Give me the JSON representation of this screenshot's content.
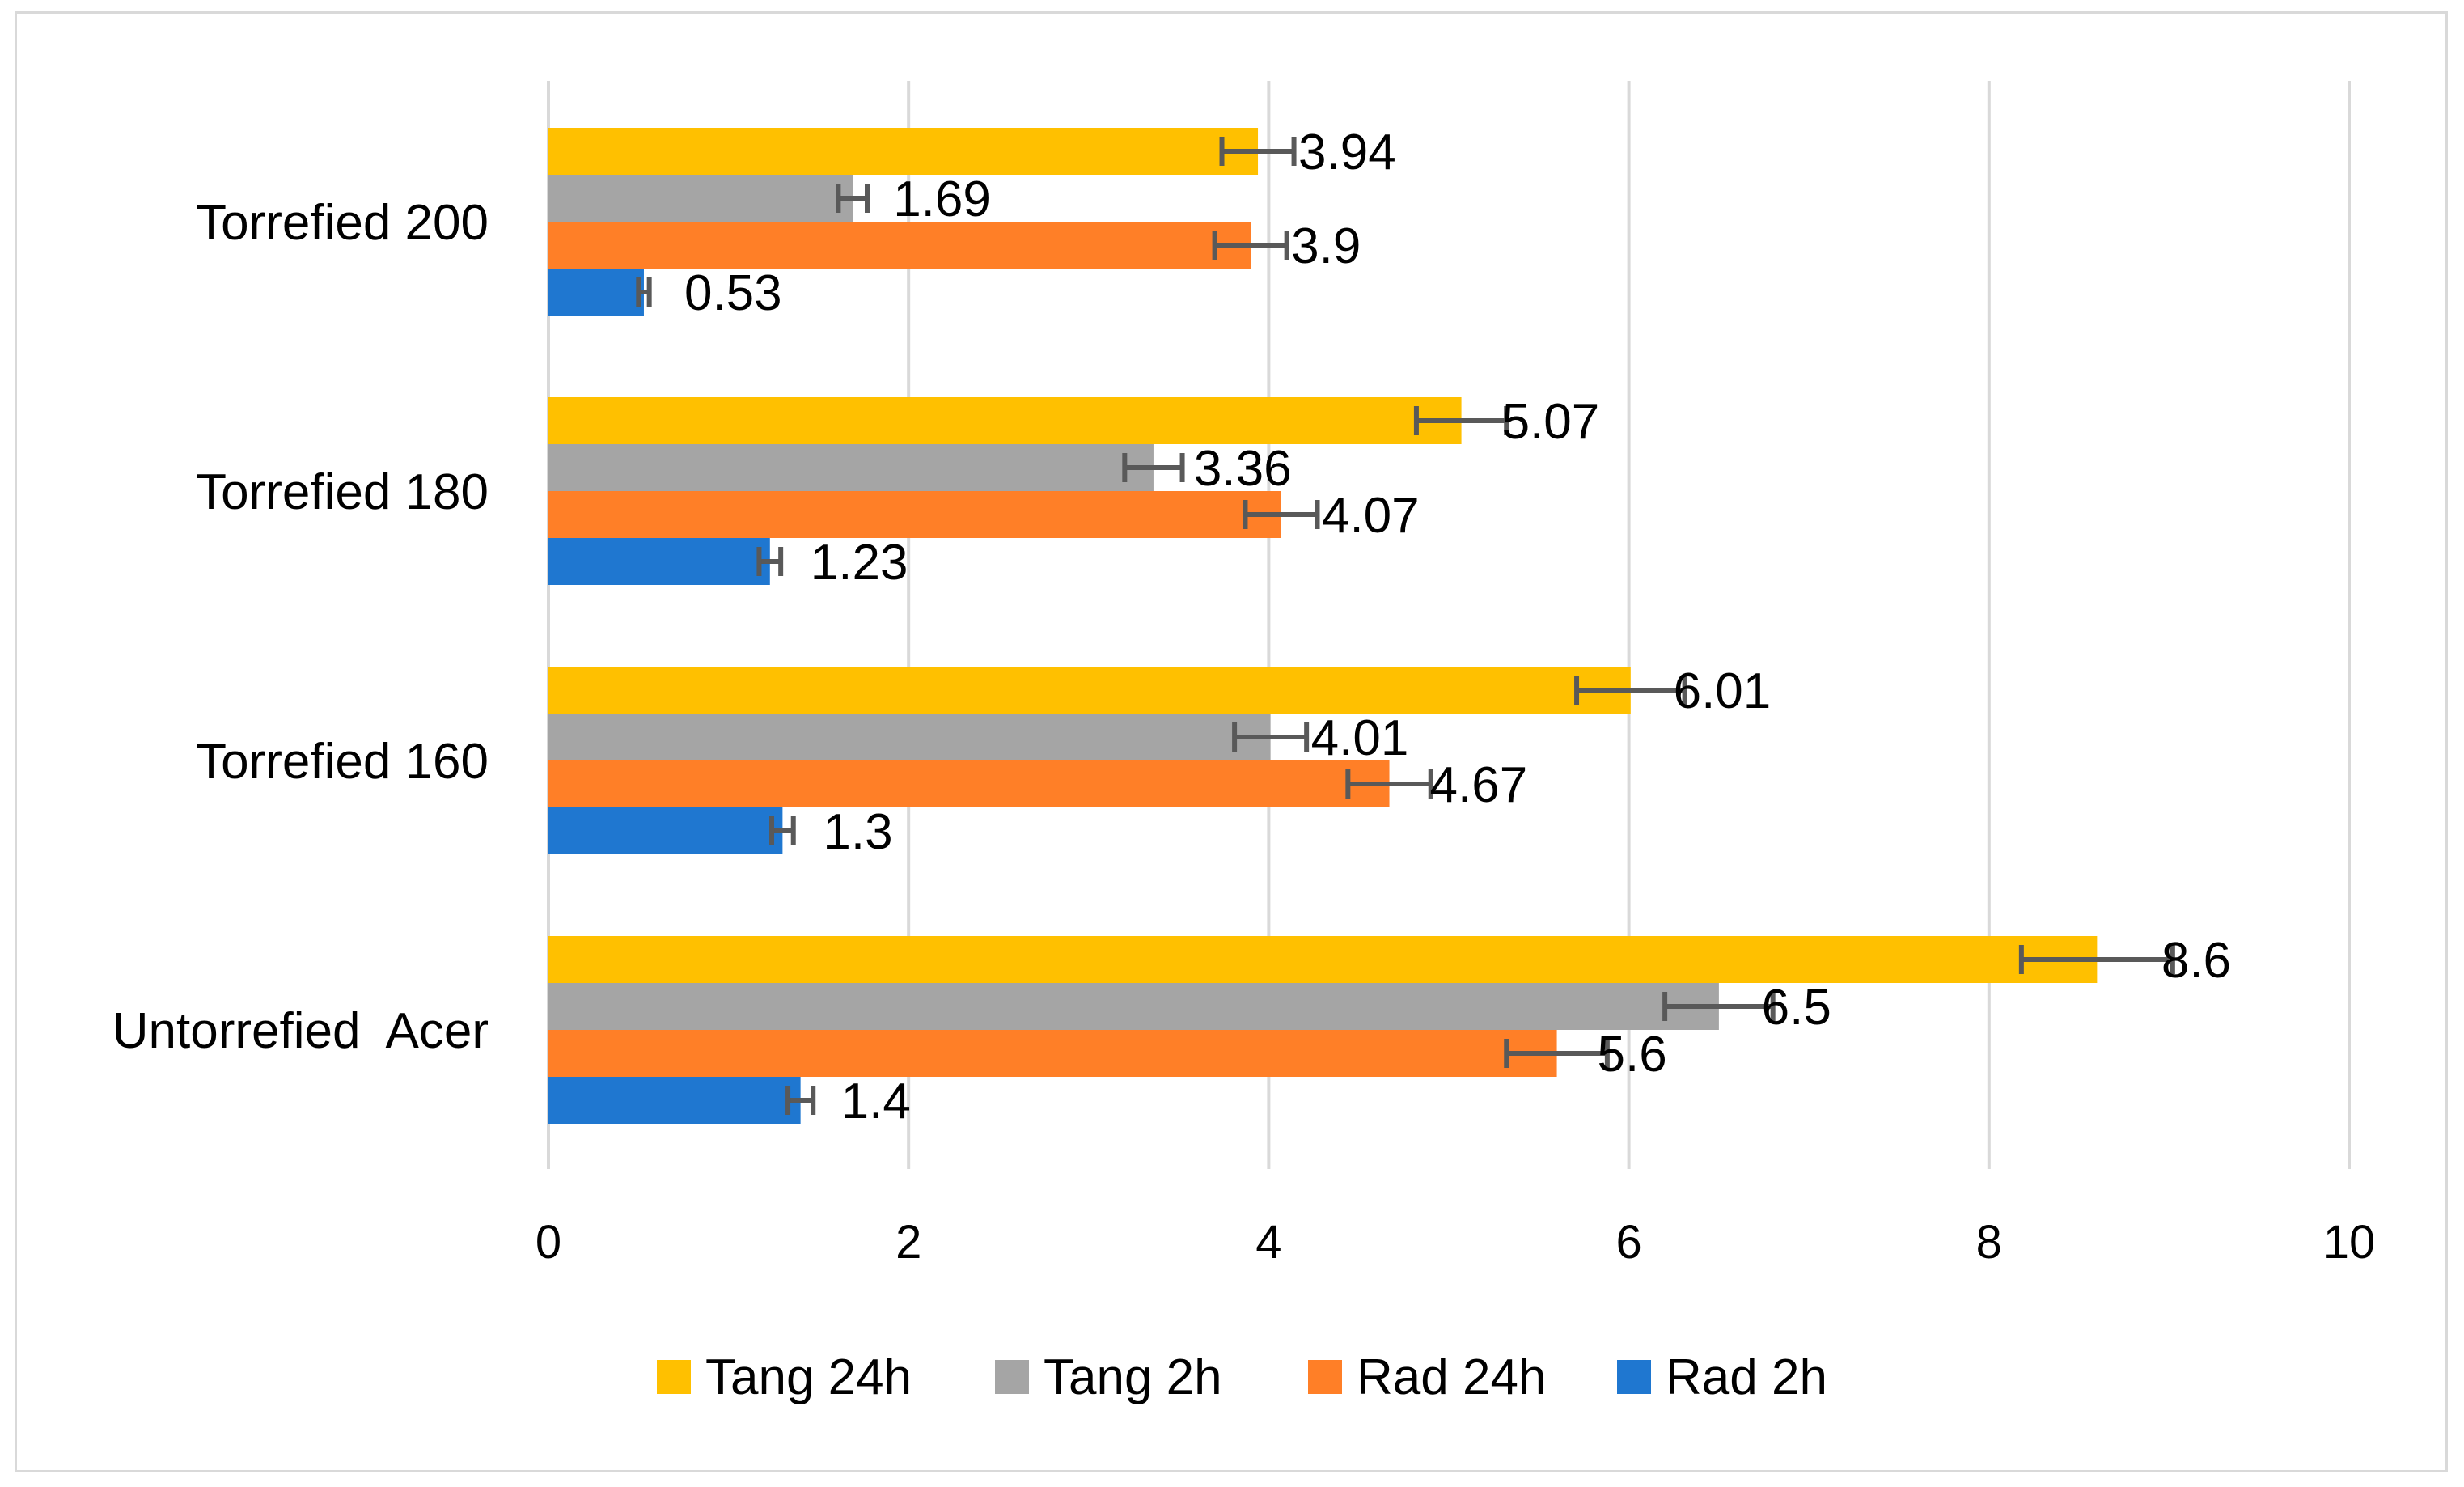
{
  "chart_data": {
    "type": "bar",
    "orientation": "horizontal",
    "title": "",
    "xlabel": "",
    "ylabel": "",
    "xlim": [
      0,
      10
    ],
    "xticks": [
      "0",
      "2",
      "4",
      "6",
      "8",
      "10"
    ],
    "grid": true,
    "legend_position": "bottom",
    "categories": [
      "Torrefied 200",
      "Torrefied 180",
      "Torrefied 160",
      "Untorrefied  Acer"
    ],
    "series": [
      {
        "name": "Tang 24h",
        "color": "#FFC000",
        "values": [
          3.94,
          5.07,
          6.01,
          8.6
        ],
        "labels": [
          "3.94",
          "5.07",
          "6.01",
          "8.6"
        ],
        "errors": [
          0.2,
          0.25,
          0.3,
          0.42
        ]
      },
      {
        "name": "Tang 2h",
        "color": "#A5A5A5",
        "values": [
          1.69,
          3.36,
          4.01,
          6.5
        ],
        "labels": [
          "1.69",
          "3.36",
          "4.01",
          "6.5"
        ],
        "errors": [
          0.08,
          0.16,
          0.2,
          0.3
        ]
      },
      {
        "name": "Rad 24h",
        "color": "#FF7F27",
        "values": [
          3.9,
          4.07,
          4.67,
          5.6
        ],
        "labels": [
          "3.9",
          "4.07",
          "4.67",
          "5.6"
        ],
        "errors": [
          0.2,
          0.2,
          0.23,
          0.28
        ]
      },
      {
        "name": "Rad 2h",
        "color": "#1F77D0",
        "values": [
          0.53,
          1.23,
          1.3,
          1.4
        ],
        "labels": [
          "0.53",
          "1.23",
          "1.3",
          "1.4"
        ],
        "errors": [
          0.03,
          0.06,
          0.06,
          0.07
        ]
      }
    ]
  }
}
